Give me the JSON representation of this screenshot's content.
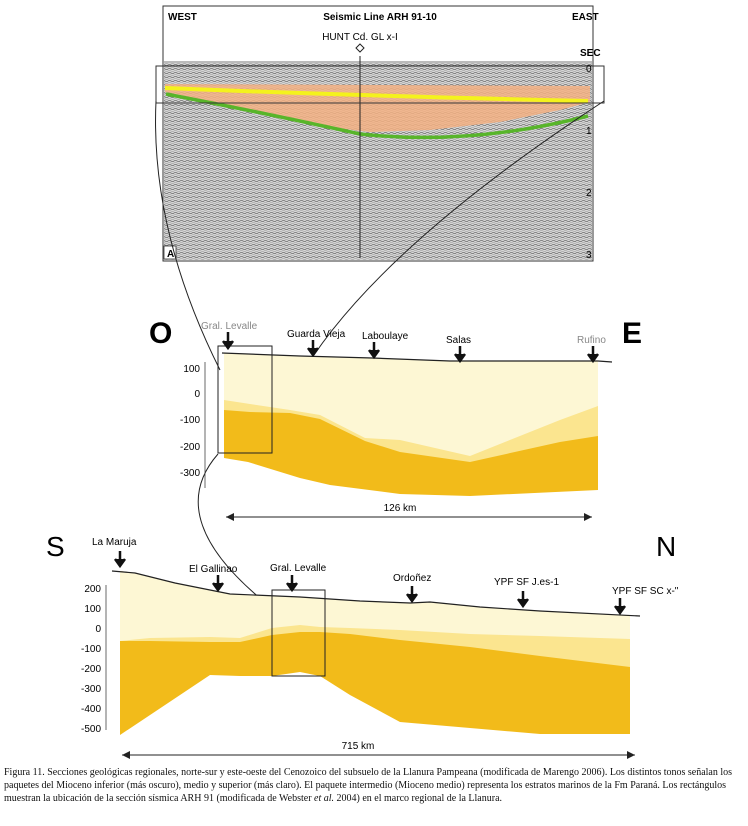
{
  "seismic": {
    "west": "WEST",
    "east": "EAST",
    "title": "Seismic Line ARH 91-10",
    "well": "HUNT Cd. GL x-I",
    "sec_label": "SEC",
    "sec_ticks": [
      "0",
      "1",
      "2",
      "3"
    ],
    "panel_letter": "A"
  },
  "section_oe": {
    "left_letter": "O",
    "right_letter": "E",
    "locations": [
      "Gral. Levalle",
      "Guarda Vieja",
      "Laboulaye",
      "Salas",
      "Rufino"
    ],
    "y_ticks": [
      "100",
      "0",
      "-100",
      "-200",
      "-300"
    ],
    "distance": "126 km"
  },
  "section_sn": {
    "left_letter": "S",
    "right_letter": "N",
    "locations": [
      "La Maruja",
      "El Gallinao",
      "Gral. Levalle",
      "Ordoñez",
      "YPF SF J.es-1",
      "YPF SF SC x-\""
    ],
    "y_ticks": [
      "200",
      "100",
      "0",
      "-100",
      "-200",
      "-300",
      "-400",
      "-500"
    ],
    "distance": "715 km"
  },
  "colors": {
    "lower_miocene": "#f2bb1a",
    "middle_miocene": "#fbe58f",
    "upper_miocene": "#fdf7d4",
    "yellow_horizon": "#f4f21c",
    "green_horizon": "#58b52a",
    "orange_fill": "#f3b083"
  },
  "caption": {
    "part1": "Figura 11. Secciones geológicas regionales, norte-sur y este-oeste del Cenozoico del subsuelo de la Llanura Pampeana (modificada de Marengo 2006). Los distintos tonos señalan los paquetes del Mioceno inferior (más oscuro), medio y superior (más claro). El paquete intermedio (Mioceno medio) representa los estratos marinos de la Fm Paraná. Los rectángulos muestran la ubicación de la sección sísmica ARH 91 (modificada de Webster ",
    "italic": "et al.",
    "part2": " 2004) en el marco regional de la Llanura."
  }
}
